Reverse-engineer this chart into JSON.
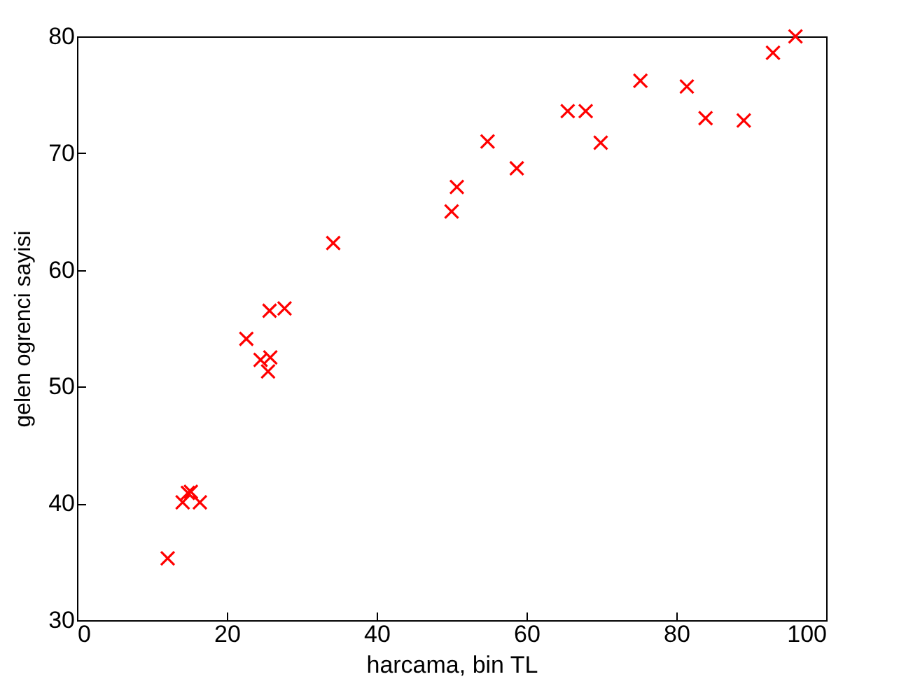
{
  "chart_data": {
    "type": "scatter",
    "xlabel": "harcama, bin TL",
    "ylabel": "gelen ogrenci sayisi",
    "x": [
      12.1,
      14.1,
      14.8,
      15.2,
      16.4,
      22.6,
      24.5,
      25.8,
      25.5,
      25.7,
      27.7,
      34.2,
      50.0,
      50.7,
      54.8,
      58.7,
      65.5,
      67.9,
      69.9,
      75.2,
      81.4,
      83.9,
      89.0,
      92.9,
      95.9
    ],
    "series": [
      {
        "color": "#ff0000",
        "values": [
          35.3,
          40.1,
          40.9,
          41.0,
          40.1,
          54.1,
          52.3,
          52.5,
          51.3,
          56.5,
          56.7,
          62.3,
          65.0,
          67.1,
          71.0,
          68.7,
          73.6,
          73.6,
          70.9,
          76.2,
          75.7,
          73.0,
          72.8,
          78.6,
          80.0
        ]
      }
    ],
    "xlim": [
      0,
      100
    ],
    "ylim": [
      30,
      80
    ],
    "xticks": [
      0,
      20,
      40,
      60,
      80,
      100
    ],
    "yticks": [
      30,
      40,
      50,
      60,
      70,
      80
    ],
    "marker": "cross",
    "grid": false
  }
}
